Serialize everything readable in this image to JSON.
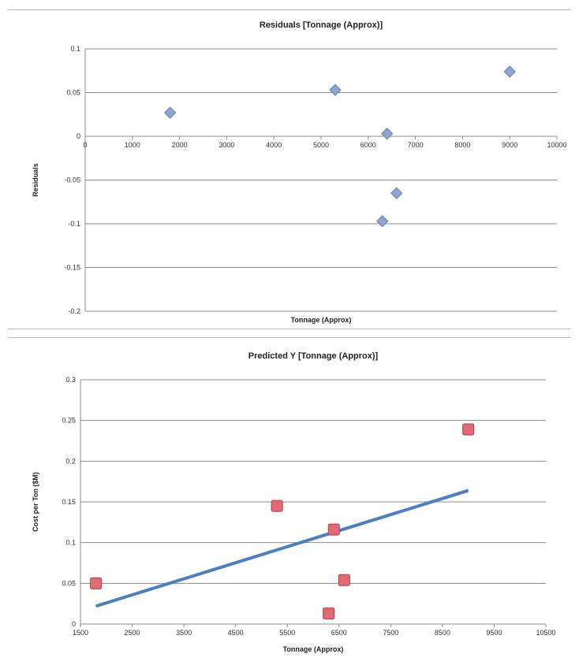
{
  "chart_data": [
    {
      "type": "scatter",
      "title": "Residuals [Tonnage (Approx)]",
      "xlabel": "Tonnage (Approx)",
      "ylabel": "Residuals",
      "xlim": [
        0,
        10000
      ],
      "ylim": [
        -0.2,
        0.1
      ],
      "x_ticks": [
        0,
        1000,
        2000,
        3000,
        4000,
        5000,
        6000,
        7000,
        8000,
        9000,
        10000
      ],
      "x_tick_labels": [
        "0",
        "1000",
        "2000",
        "3000",
        "4000",
        "5000",
        "6000",
        "7000",
        "8000",
        "9000",
        "10000"
      ],
      "y_ticks": [
        0.1,
        0.05,
        0,
        -0.05,
        -0.1,
        -0.15,
        -0.2
      ],
      "y_tick_labels": [
        "0.1",
        "0.05",
        "0",
        "-0.05",
        "-0.1",
        "-0.15",
        "-0.2"
      ],
      "grid": true,
      "series": [
        {
          "marker": "diamond",
          "color": "#8ea4d2",
          "points": [
            {
              "x": 1800,
              "y": 0.027
            },
            {
              "x": 5300,
              "y": 0.053
            },
            {
              "x": 6400,
              "y": 0.003
            },
            {
              "x": 6600,
              "y": -0.065
            },
            {
              "x": 6300,
              "y": -0.097
            },
            {
              "x": 9000,
              "y": 0.074
            }
          ]
        }
      ]
    },
    {
      "type": "scatter",
      "title": "Predicted Y [Tonnage (Approx)]",
      "xlabel": "Tonnage (Approx)",
      "ylabel": "Cost per Ton ($M)",
      "xlim": [
        1500,
        10500
      ],
      "ylim": [
        0,
        0.3
      ],
      "x_ticks": [
        1500,
        2500,
        3500,
        4500,
        5500,
        6500,
        7500,
        8500,
        9500,
        10500
      ],
      "x_tick_labels": [
        "1500",
        "2500",
        "3500",
        "4500",
        "5500",
        "6500",
        "7500",
        "8500",
        "9500",
        "10500"
      ],
      "y_ticks": [
        0.3,
        0.25,
        0.2,
        0.15,
        0.1,
        0.05,
        0
      ],
      "y_tick_labels": [
        "0.3",
        "0.25",
        "0.2",
        "0.15",
        "0.1",
        "0.05",
        "0"
      ],
      "grid": true,
      "series": [
        {
          "marker": "square",
          "color": "#e26a74",
          "points": [
            {
              "x": 1800,
              "y": 0.05
            },
            {
              "x": 5300,
              "y": 0.145
            },
            {
              "x": 6400,
              "y": 0.116
            },
            {
              "x": 6600,
              "y": 0.054
            },
            {
              "x": 6300,
              "y": 0.013
            },
            {
              "x": 9000,
              "y": 0.239
            }
          ]
        }
      ],
      "trendline": {
        "color": "#4a7fc1",
        "x": [
          1800,
          9000
        ],
        "y": [
          0.022,
          0.164
        ]
      }
    }
  ]
}
